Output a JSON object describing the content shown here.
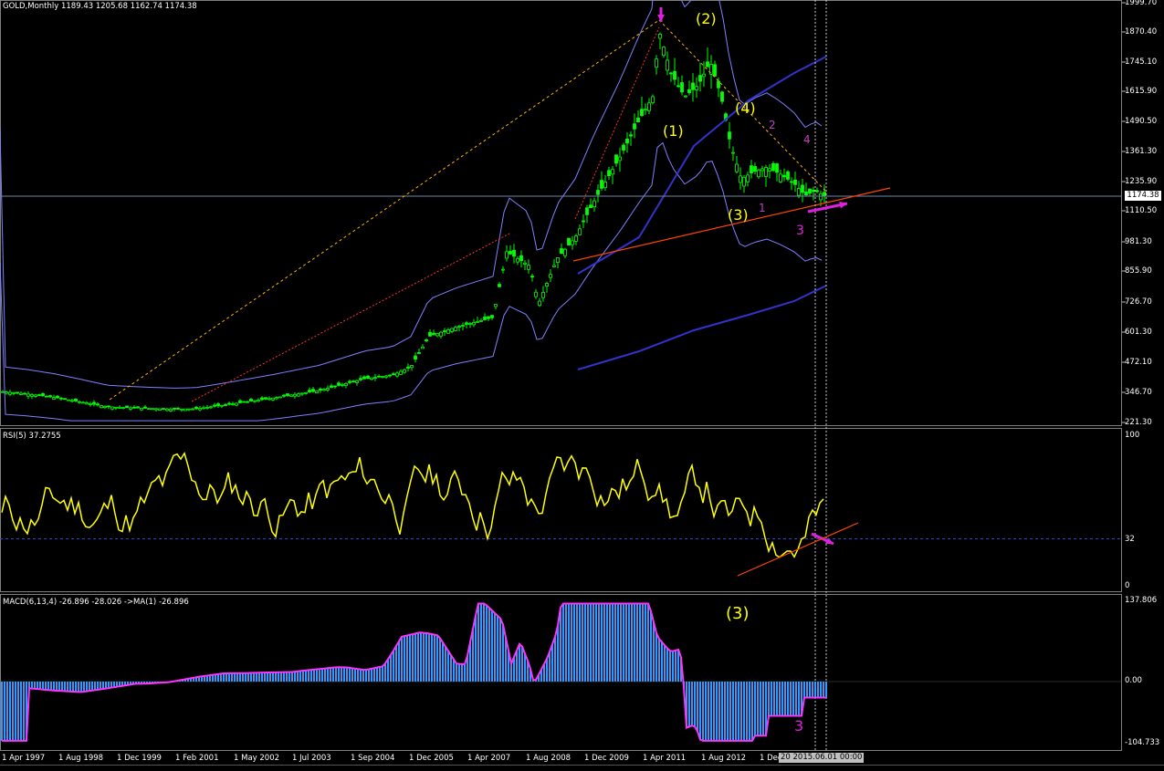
{
  "main_pane": {
    "title": "GOLD,Monthly  1189.43 1205.68 1162.74 1174.38",
    "current_price": "1174.38",
    "y_ticks": [
      "1999.70",
      "1870.40",
      "1745.10",
      "1615.90",
      "1490.50",
      "1361.30",
      "1235.90",
      "1110.50",
      "981.30",
      "855.90",
      "726.70",
      "601.30",
      "472.10",
      "346.70",
      "221.30"
    ]
  },
  "rsi_pane": {
    "title": "RSI(5) 37.2755",
    "y_ticks": [
      "100",
      "32",
      "0"
    ]
  },
  "macd_pane": {
    "title": "MACD(6,13,4) -26.896 -28.026  ->MA(1) -26.896",
    "y_ticks": [
      "137.806",
      "0.00",
      "-104.733"
    ]
  },
  "x_axis": {
    "labels": [
      "1 Apr 1997",
      "1 Aug 1998",
      "1 Dec 1999",
      "1 Feb 2001",
      "1 May 2002",
      "1 Jul 2003",
      "1 Sep 2004",
      "1 Dec 2005",
      "1 Apr 2007",
      "1 Aug 2008",
      "1 Dec 2009",
      "1 Apr 2011",
      "1 Aug 2012",
      "1 Dec"
    ],
    "crosshair_date": "20 2015.06.01 00:00"
  },
  "annotations": {
    "wave_2": "(2)",
    "wave_1": "(1)",
    "wave_4": "(4)",
    "wave_3_main": "(3)",
    "sub_2": "2",
    "sub_4": "4",
    "sub_3": "3",
    "sub_1": "1",
    "macd_wave_3": "(3)",
    "macd_sub_3": "3"
  },
  "colors": {
    "candles": "#00ff00",
    "bollinger": "#8080ff",
    "moving_average": "#3333cc",
    "rsi_line": "#ffff00",
    "macd_hist": "#3399ff",
    "macd_signal": "#ff33ff",
    "trendline": "#ff4500",
    "annotation_yellow": "#ffff00",
    "annotation_magenta": "#e020e0"
  }
}
